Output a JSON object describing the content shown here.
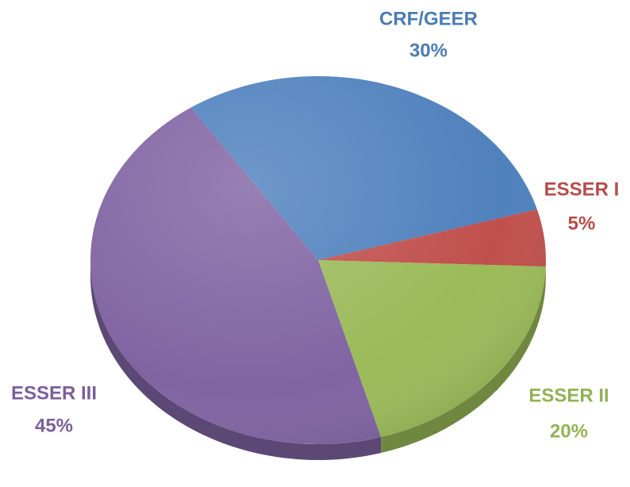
{
  "chart_data": {
    "type": "pie",
    "categories": [
      "CRF/GEER",
      "ESSER I",
      "ESSER II",
      "ESSER III"
    ],
    "values": [
      30,
      5,
      20,
      45
    ],
    "value_labels": [
      "30%",
      "5%",
      "20%",
      "45%"
    ],
    "colors": [
      "#4f81bd",
      "#c0504d",
      "#9bbb59",
      "#8064a2"
    ]
  }
}
